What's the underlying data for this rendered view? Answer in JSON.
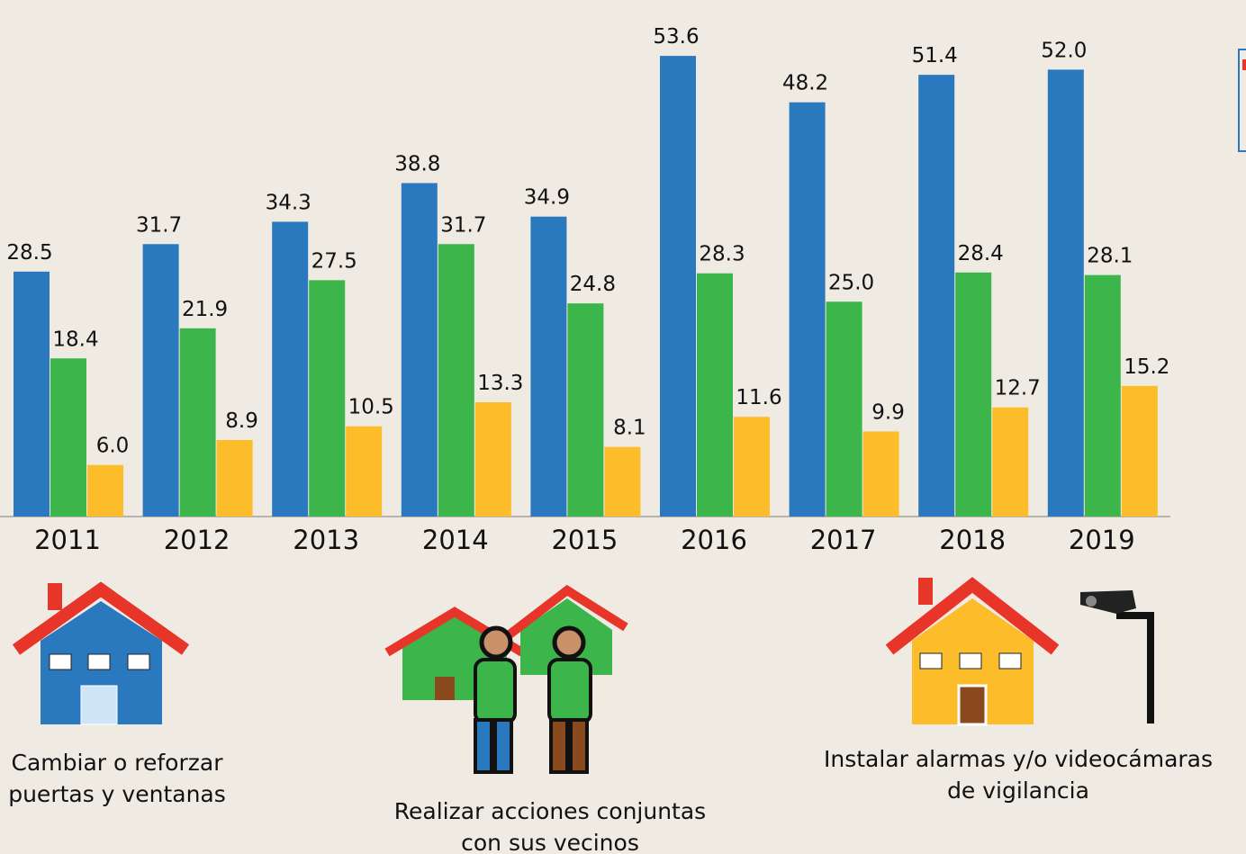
{
  "chart_data": {
    "type": "bar",
    "categories": [
      "2011",
      "2012",
      "2013",
      "2014",
      "2015",
      "2016",
      "2017",
      "2018",
      "2019"
    ],
    "series": [
      {
        "color": "#2a78bd",
        "values": [
          28.5,
          31.7,
          34.3,
          38.8,
          34.9,
          53.6,
          48.2,
          51.4,
          52.0
        ],
        "value_labels": [
          "28.5",
          "31.7",
          "34.3",
          "38.8",
          "34.9",
          "53.6",
          "48.2",
          "51.4",
          "52.0"
        ]
      },
      {
        "color": "#3cb54a",
        "values": [
          18.4,
          21.9,
          27.5,
          31.7,
          24.8,
          28.3,
          25.0,
          28.4,
          28.1
        ],
        "value_labels": [
          "18.4",
          "21.9",
          "27.5",
          "31.7",
          "24.8",
          "28.3",
          "25.0",
          "28.4",
          "28.1"
        ]
      },
      {
        "color": "#fdbd2a",
        "values": [
          6.0,
          8.9,
          10.5,
          13.3,
          8.1,
          11.6,
          9.9,
          12.7,
          15.2
        ],
        "value_labels": [
          "6.0",
          "8.9",
          "10.5",
          "13.3",
          "8.1",
          "11.6",
          "9.9",
          "12.7",
          "15.2"
        ]
      }
    ],
    "ylim": [
      0,
      60
    ],
    "annotations": [
      [
        "Cambiar o reforzar",
        "puertas y ventanas"
      ],
      [
        "Realizar acciones conjuntas",
        "con sus vecinos"
      ],
      [
        "Instalar alarmas y/o videocámaras",
        "de vigilancia"
      ]
    ]
  }
}
